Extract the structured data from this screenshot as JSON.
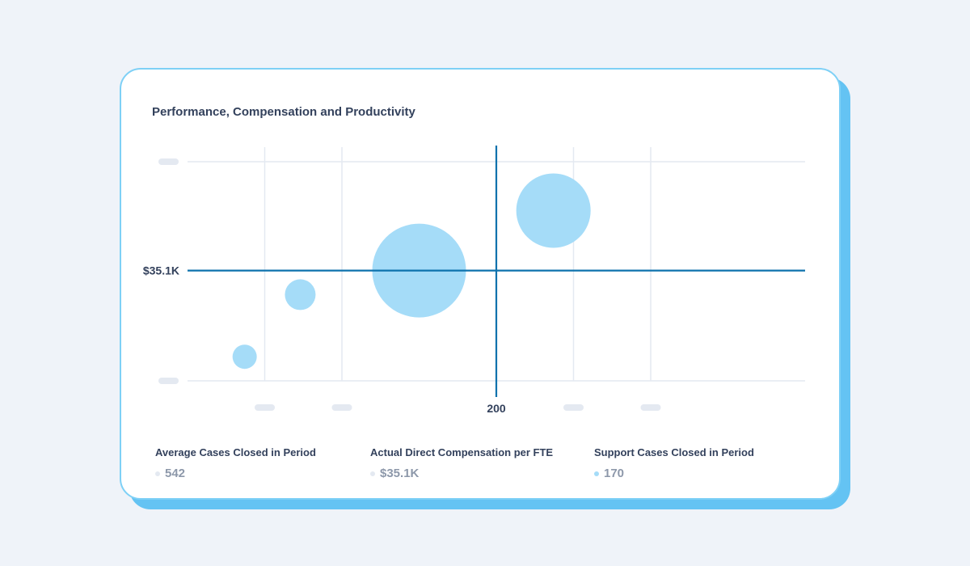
{
  "card": {
    "title": "Performance, Compensation and Productivity"
  },
  "chart_data": {
    "type": "scatter",
    "title": "Performance, Compensation and Productivity",
    "xlabel": "",
    "ylabel": "",
    "reference_lines": {
      "x": {
        "value": 200,
        "label": "200"
      },
      "y": {
        "value": 35.1,
        "label": "$35.1K"
      }
    },
    "xlim": [
      0,
      400
    ],
    "ylim": [
      20,
      50
    ],
    "x_tick_values": [
      50,
      100,
      250,
      300
    ],
    "y_tick_values": [
      20,
      50
    ],
    "grid": true,
    "legend": "none",
    "bubbles": [
      {
        "x": 37,
        "y": 23.3,
        "size": 15
      },
      {
        "x": 73,
        "y": 31.8,
        "size": 19
      },
      {
        "x": 150,
        "y": 35.1,
        "size": 58
      },
      {
        "x": 237,
        "y": 43.3,
        "size": 46
      }
    ],
    "bubble_color": "#a5dcf8",
    "reference_line_color": "#0d72ad",
    "grid_color": "#e4e9f1"
  },
  "stats": [
    {
      "label": "Average Cases Closed in Period",
      "value": "542",
      "dot_color": "#e4e9f1"
    },
    {
      "label": "Actual Direct Compensation per FTE",
      "value": "$35.1K",
      "dot_color": "#e4e9f1"
    },
    {
      "label": "Support Cases Closed in Period",
      "value": "170",
      "dot_color": "#a5dcf8"
    }
  ]
}
